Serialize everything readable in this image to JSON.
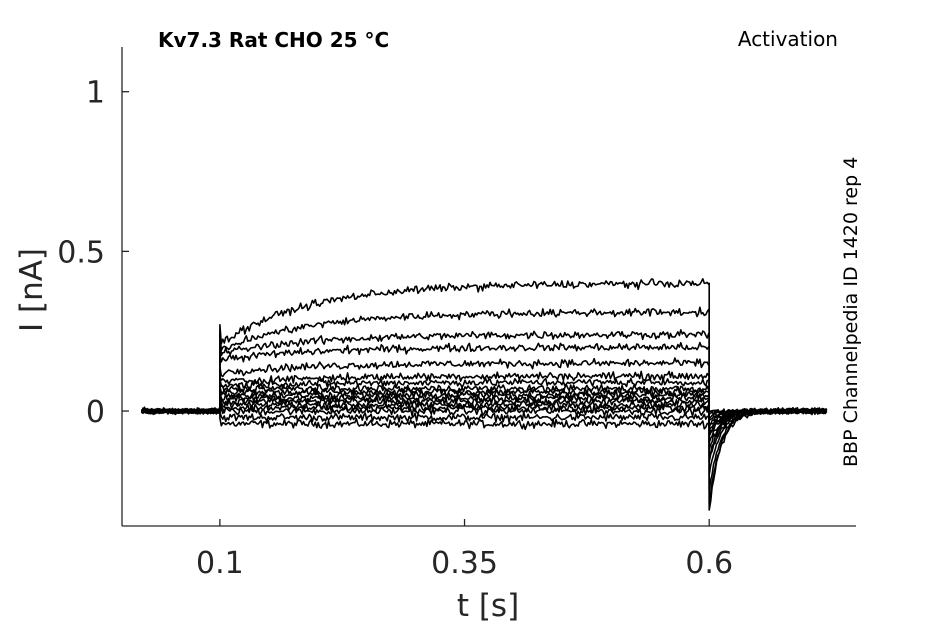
{
  "chart_data": {
    "type": "line",
    "title": "Kv7.3  Rat  CHO  25 °C",
    "protocol": "Activation",
    "source_label": "BBP Channelpedia ID 1420 rep 4",
    "xlabel": "t [s]",
    "ylabel": "I [nA]",
    "xlim": [
      0.0,
      0.75
    ],
    "ylim": [
      -0.36,
      1.14
    ],
    "xticks": [
      0.1,
      0.35,
      0.6
    ],
    "xtick_labels": [
      "0.1",
      "0.35",
      "0.6"
    ],
    "yticks": [
      0,
      0.5,
      1
    ],
    "ytick_labels": [
      "0",
      "0.5",
      "1"
    ],
    "grid": false,
    "line_color": "#000000",
    "step_start": 0.1,
    "step_end": 0.6,
    "sweeps": [
      {
        "steady": -0.04,
        "early": -0.04,
        "tail_min": 0.0
      },
      {
        "steady": -0.02,
        "early": -0.02,
        "tail_min": -0.01
      },
      {
        "steady": 0.0,
        "early": 0.0,
        "tail_min": -0.02
      },
      {
        "steady": 0.01,
        "early": 0.01,
        "tail_min": -0.03
      },
      {
        "steady": 0.02,
        "early": 0.02,
        "tail_min": -0.04
      },
      {
        "steady": 0.03,
        "early": 0.03,
        "tail_min": -0.05
      },
      {
        "steady": 0.04,
        "early": 0.04,
        "tail_min": -0.06
      },
      {
        "steady": 0.05,
        "early": 0.05,
        "tail_min": -0.07
      },
      {
        "steady": 0.06,
        "early": 0.06,
        "tail_min": -0.08
      },
      {
        "steady": 0.07,
        "early": 0.07,
        "tail_min": -0.1
      },
      {
        "steady": 0.09,
        "early": 0.08,
        "tail_min": -0.12
      },
      {
        "steady": 0.11,
        "early": 0.09,
        "tail_min": -0.14
      },
      {
        "steady": 0.15,
        "early": 0.12,
        "tail_min": -0.16
      },
      {
        "steady": 0.2,
        "early": 0.16,
        "tail_min": -0.2
      },
      {
        "steady": 0.24,
        "early": 0.18,
        "tail_min": -0.25
      },
      {
        "steady": 0.31,
        "early": 0.19,
        "tail_min": -0.29
      },
      {
        "steady": 0.4,
        "early": 0.21,
        "tail_min": -0.31
      }
    ]
  }
}
